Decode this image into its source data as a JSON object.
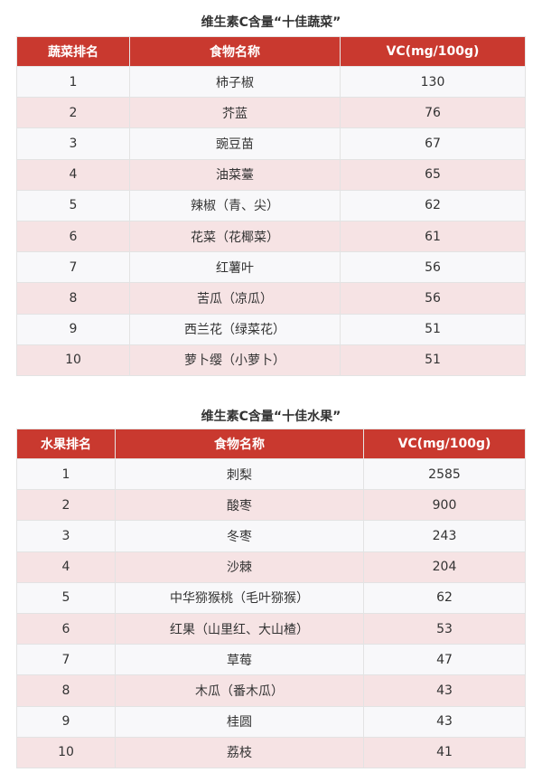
{
  "vegetables": {
    "title": "维生素C含量“十佳蔬菜”",
    "headers": [
      "蔬菜排名",
      "食物名称",
      "VC(mg/100g)"
    ],
    "rows": [
      [
        "1",
        "柿子椒",
        "130"
      ],
      [
        "2",
        "芥蓝",
        "76"
      ],
      [
        "3",
        "豌豆苗",
        "67"
      ],
      [
        "4",
        "油菜薹",
        "65"
      ],
      [
        "5",
        "辣椒（青、尖）",
        "62"
      ],
      [
        "6",
        "花菜（花椰菜）",
        "61"
      ],
      [
        "7",
        "红薯叶",
        "56"
      ],
      [
        "8",
        "苦瓜（凉瓜）",
        "56"
      ],
      [
        "9",
        "西兰花（绿菜花）",
        "51"
      ],
      [
        "10",
        "萝卜缨（小萝卜）",
        "51"
      ]
    ]
  },
  "fruits": {
    "title": "维生素C含量“十佳水果”",
    "headers": [
      "水果排名",
      "食物名称",
      "VC(mg/100g)"
    ],
    "rows": [
      [
        "1",
        "刺梨",
        "2585"
      ],
      [
        "2",
        "酸枣",
        "900"
      ],
      [
        "3",
        "冬枣",
        "243"
      ],
      [
        "4",
        "沙棘",
        "204"
      ],
      [
        "5",
        "中华猕猴桃（毛叶猕猴）",
        "62"
      ],
      [
        "6",
        "红果（山里红、大山楂）",
        "53"
      ],
      [
        "7",
        "草莓",
        "47"
      ],
      [
        "8",
        "木瓜（番木瓜）",
        "43"
      ],
      [
        "9",
        "桂圆",
        "43"
      ],
      [
        "10",
        "荔枝",
        "41"
      ]
    ]
  },
  "colors": {
    "header": "#c9392f",
    "row_alt": "#f6e3e4",
    "row": "#f8f8fa"
  }
}
